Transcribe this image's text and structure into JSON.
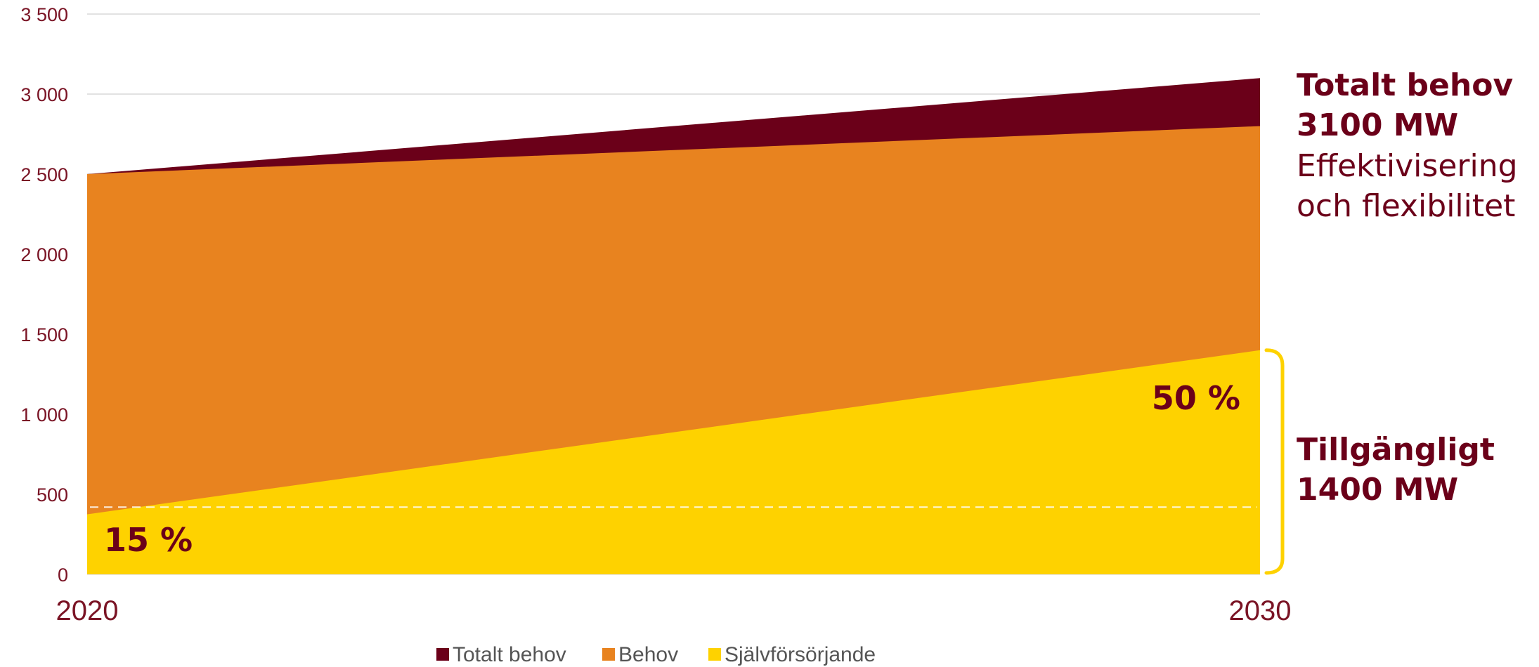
{
  "colors": {
    "totalt_behov": "#6b0019",
    "behov": "#e8831f",
    "sjalvforsorjande": "#fed200",
    "text": "#6b0019",
    "axis_text": "#7a1425",
    "grid": "#d9d9d9",
    "bracket": "#fed200"
  },
  "chart_data": {
    "type": "area",
    "stacked": false,
    "x": [
      "2020",
      "2030"
    ],
    "ylim": [
      0,
      3500
    ],
    "yticks": [
      0,
      500,
      1000,
      1500,
      2000,
      2500,
      3000,
      3500
    ],
    "ytick_labels": [
      "0",
      "500",
      "1 000",
      "1 500",
      "2 000",
      "2 500",
      "3 000",
      "3 500"
    ],
    "grid": true,
    "legend_position": "bottom",
    "series": [
      {
        "name": "Totalt behov",
        "values": [
          2500,
          3100
        ]
      },
      {
        "name": "Behov",
        "values": [
          2500,
          2800
        ]
      },
      {
        "name": "Självförsörjande",
        "values": [
          375,
          1400
        ]
      }
    ],
    "reference_line": {
      "style": "dashed",
      "value": 420
    },
    "annotations": {
      "pct_start": "15 %",
      "pct_end": "50 %",
      "total_title": "Totalt behov",
      "total_value": "3100 MW",
      "total_note_line1": "Effektivisering",
      "total_note_line2": "och flexibilitet",
      "available_title": "Tillgängligt",
      "available_value": "1400 MW"
    }
  }
}
